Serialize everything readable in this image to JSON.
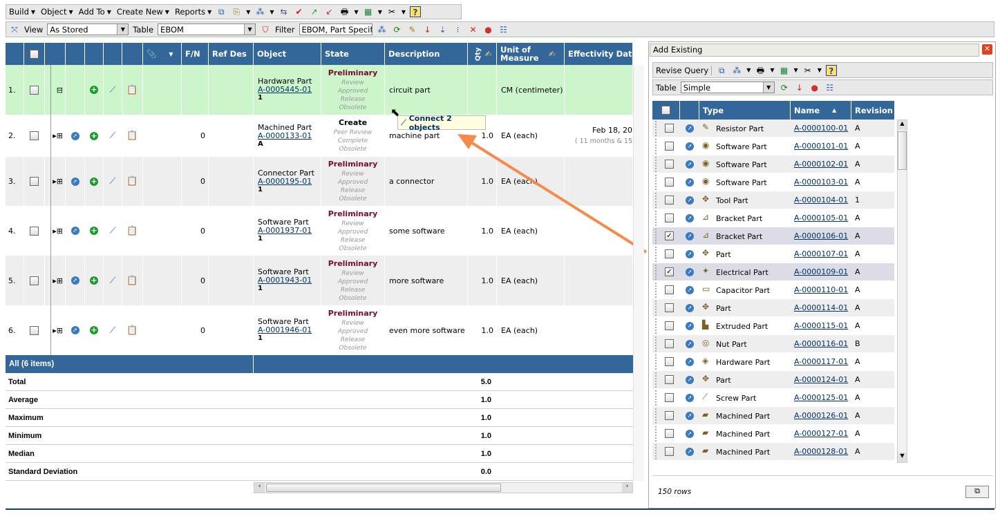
{
  "toolbar": {
    "menus": [
      "Build",
      "Object",
      "Add To",
      "Create New",
      "Reports"
    ],
    "view_label": "View",
    "view_value": "As Stored",
    "table_label": "Table",
    "table_value": "EBOM",
    "filter_label": "Filter",
    "filter_value": "EBOM, Part Specif"
  },
  "columns": {
    "fn": "F/N",
    "refdes": "Ref Des",
    "object": "Object",
    "state": "State",
    "description": "Description",
    "qty": "Qty",
    "uom": "Unit of Measure",
    "eff": "Effectivity Dat"
  },
  "rows": [
    {
      "num": "1.",
      "fn": "",
      "type": "Hardware Part",
      "name": "A-0005445-01",
      "rev": "1",
      "state_current": "Preliminary",
      "states": [
        "Review",
        "Approved",
        "Release",
        "Obsolete"
      ],
      "description": "circuit part",
      "qty": "",
      "uom": "CM (centimeter)",
      "eff": "",
      "eff_sub": "",
      "selected": true,
      "expand": "⊟"
    },
    {
      "num": "2.",
      "fn": "0",
      "type": "Machined Part",
      "name": "A-0000133-01",
      "rev": "A",
      "state_current": "Create",
      "states": [
        "Peer Review",
        "Complete",
        "Obsolete"
      ],
      "description": "machine part",
      "qty": "1.0",
      "uom": "EA (each)",
      "eff": "Feb 18, 20",
      "eff_sub": "( 11 months & 15",
      "expand": "⊞"
    },
    {
      "num": "3.",
      "fn": "0",
      "type": "Connector Part",
      "name": "A-0000195-01",
      "rev": "1",
      "state_current": "Preliminary",
      "states": [
        "Review",
        "Approved",
        "Release",
        "Obsolete"
      ],
      "description": "a connector",
      "qty": "1.0",
      "uom": "EA (each)",
      "eff": "",
      "eff_sub": "",
      "expand": "⊞"
    },
    {
      "num": "4.",
      "fn": "0",
      "type": "Software Part",
      "name": "A-0001937-01",
      "rev": "1",
      "state_current": "Preliminary",
      "states": [
        "Review",
        "Approved",
        "Release",
        "Obsolete"
      ],
      "description": "some software",
      "qty": "1.0",
      "uom": "EA (each)",
      "eff": "",
      "eff_sub": "",
      "expand": "⊞"
    },
    {
      "num": "5.",
      "fn": "0",
      "type": "Software Part",
      "name": "A-0001943-01",
      "rev": "1",
      "state_current": "Preliminary",
      "states": [
        "Review",
        "Approved",
        "Release",
        "Obsolete"
      ],
      "description": "more software",
      "qty": "1.0",
      "uom": "EA (each)",
      "eff": "",
      "eff_sub": "",
      "expand": "⊞"
    },
    {
      "num": "6.",
      "fn": "0",
      "type": "Software Part",
      "name": "A-0001946-01",
      "rev": "1",
      "state_current": "Preliminary",
      "states": [
        "Review",
        "Approved",
        "Release",
        "Obsolete"
      ],
      "description": "even more software",
      "qty": "1.0",
      "uom": "EA (each)",
      "eff": "",
      "eff_sub": "",
      "expand": "⊞"
    }
  ],
  "summary": {
    "title": "All (6 items)",
    "rows": [
      {
        "label": "Total",
        "value": "5.0"
      },
      {
        "label": "Average",
        "value": "1.0"
      },
      {
        "label": "Maximum",
        "value": "1.0"
      },
      {
        "label": "Minimum",
        "value": "1.0"
      },
      {
        "label": "Median",
        "value": "1.0"
      },
      {
        "label": "Standard Deviation",
        "value": "0.0"
      }
    ]
  },
  "tooltip": "Connect 2 objects",
  "panel": {
    "title": "Add Existing",
    "revise_query": "Revise Query",
    "table_label": "Table",
    "table_value": "Simple",
    "columns": {
      "type": "Type",
      "name": "Name",
      "revision": "Revision"
    },
    "footer": "150 rows",
    "rows": [
      {
        "type": "Resistor Part",
        "name": "A-0000100-01",
        "rev": "A",
        "icon": "✎"
      },
      {
        "type": "Software Part",
        "name": "A-0000101-01",
        "rev": "A",
        "icon": "◉"
      },
      {
        "type": "Software Part",
        "name": "A-0000102-01",
        "rev": "A",
        "icon": "◉"
      },
      {
        "type": "Software Part",
        "name": "A-0000103-01",
        "rev": "A",
        "icon": "◉"
      },
      {
        "type": "Tool Part",
        "name": "A-0000104-01",
        "rev": "1",
        "icon": "✥"
      },
      {
        "type": "Bracket Part",
        "name": "A-0000105-01",
        "rev": "A",
        "icon": "⊿"
      },
      {
        "type": "Bracket Part",
        "name": "A-0000106-01",
        "rev": "A",
        "icon": "⊿",
        "checked": true
      },
      {
        "type": "Part",
        "name": "A-0000107-01",
        "rev": "A",
        "icon": "✥"
      },
      {
        "type": "Electrical Part",
        "name": "A-0000109-01",
        "rev": "A",
        "icon": "✦",
        "checked": true
      },
      {
        "type": "Capacitor Part",
        "name": "A-0000110-01",
        "rev": "A",
        "icon": "▭"
      },
      {
        "type": "Part",
        "name": "A-0000114-01",
        "rev": "A",
        "icon": "✥"
      },
      {
        "type": "Extruded Part",
        "name": "A-0000115-01",
        "rev": "A",
        "icon": "▙"
      },
      {
        "type": "Nut Part",
        "name": "A-0000116-01",
        "rev": "B",
        "icon": "◎"
      },
      {
        "type": "Hardware Part",
        "name": "A-0000117-01",
        "rev": "A",
        "icon": "◈"
      },
      {
        "type": "Part",
        "name": "A-0000124-01",
        "rev": "A",
        "icon": "✥"
      },
      {
        "type": "Screw Part",
        "name": "A-0000125-01",
        "rev": "A",
        "icon": "⟋"
      },
      {
        "type": "Machined Part",
        "name": "A-0000126-01",
        "rev": "A",
        "icon": "▰"
      },
      {
        "type": "Machined Part",
        "name": "A-0000127-01",
        "rev": "A",
        "icon": "▰"
      },
      {
        "type": "Machined Part",
        "name": "A-0000128-01",
        "rev": "A",
        "icon": "▰"
      }
    ]
  },
  "colors": {
    "header": "#336699",
    "selected_row": "#ccf5cc",
    "alt_row": "#eeeeee",
    "state": "#7a0a2a",
    "arrow": "#f58a4a",
    "checked_row": "#dcdce6"
  }
}
